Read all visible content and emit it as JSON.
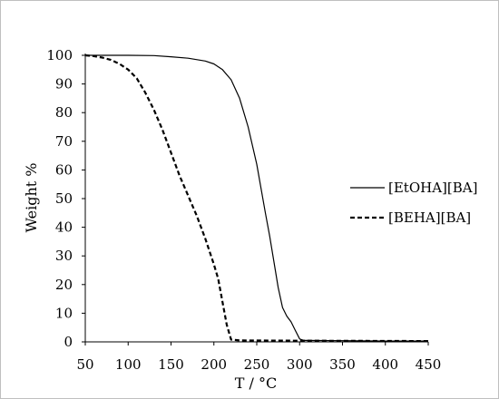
{
  "chart_data": {
    "type": "line",
    "title": "",
    "xlabel": "T / °C",
    "ylabel": "Weight %",
    "xlim": [
      50,
      450
    ],
    "ylim": [
      0,
      100
    ],
    "xticks": [
      50,
      100,
      150,
      200,
      250,
      300,
      350,
      400,
      450
    ],
    "yticks": [
      0,
      10,
      20,
      30,
      40,
      50,
      60,
      70,
      80,
      90,
      100
    ],
    "grid": false,
    "legend_position": "right",
    "series": [
      {
        "name": "[EtOHA][BA]",
        "line_style": "solid",
        "color": "#000000",
        "points": [
          [
            50,
            100
          ],
          [
            100,
            100
          ],
          [
            130,
            99.9
          ],
          [
            150,
            99.5
          ],
          [
            170,
            99
          ],
          [
            190,
            98
          ],
          [
            200,
            97
          ],
          [
            210,
            95
          ],
          [
            220,
            91.5
          ],
          [
            230,
            85
          ],
          [
            240,
            75
          ],
          [
            250,
            62
          ],
          [
            260,
            45
          ],
          [
            265,
            37
          ],
          [
            270,
            28
          ],
          [
            275,
            19
          ],
          [
            280,
            12
          ],
          [
            285,
            9
          ],
          [
            290,
            7
          ],
          [
            295,
            4
          ],
          [
            300,
            1
          ],
          [
            305,
            0.5
          ],
          [
            350,
            0.4
          ],
          [
            400,
            0.3
          ],
          [
            450,
            0.3
          ]
        ]
      },
      {
        "name": "[BEHA][BA]",
        "line_style": "dashed",
        "color": "#000000",
        "points": [
          [
            50,
            100
          ],
          [
            60,
            99.7
          ],
          [
            70,
            99.2
          ],
          [
            80,
            98.4
          ],
          [
            90,
            97
          ],
          [
            100,
            95
          ],
          [
            110,
            92
          ],
          [
            120,
            87
          ],
          [
            130,
            81
          ],
          [
            140,
            74
          ],
          [
            150,
            66
          ],
          [
            160,
            58
          ],
          [
            170,
            51
          ],
          [
            180,
            44
          ],
          [
            190,
            36
          ],
          [
            200,
            27
          ],
          [
            205,
            22
          ],
          [
            210,
            14
          ],
          [
            215,
            6
          ],
          [
            220,
            0.8
          ],
          [
            230,
            0.5
          ],
          [
            300,
            0.4
          ],
          [
            450,
            0.3
          ]
        ]
      }
    ]
  }
}
